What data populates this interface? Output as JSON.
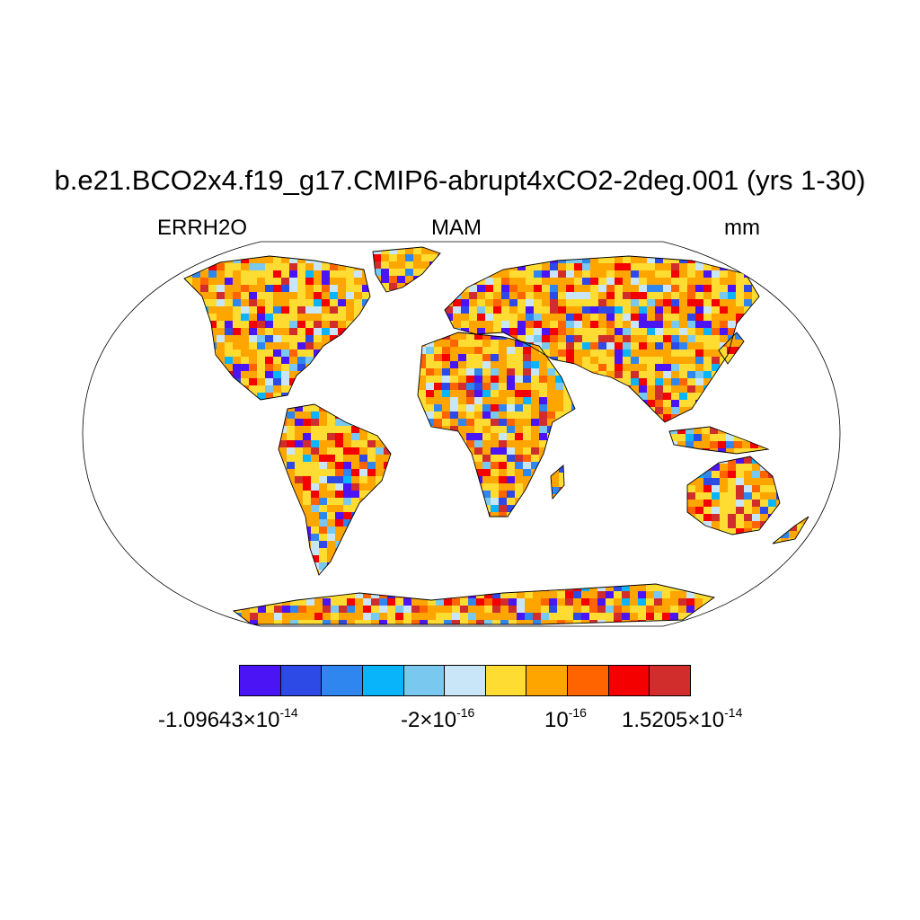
{
  "title": "b.e21.BCO2x4.f19_g17.CMIP6-abrupt4xCO2-2deg.001 (yrs 1-30)",
  "left_label": "ERRH2O",
  "center_label": "MAM",
  "right_label": "mm",
  "colorbar": {
    "colors": [
      "#4a14f5",
      "#2e4ae6",
      "#2e86ee",
      "#0ab4fa",
      "#78c8f0",
      "#c8e6f8",
      "#ffdc32",
      "#ffa500",
      "#ff6400",
      "#f50000",
      "#d22d2d"
    ],
    "labels": [
      {
        "mantissa": "-1.09643",
        "times": "×",
        "base": "10",
        "exp": "-14"
      },
      {
        "mantissa": "-2",
        "times": "×",
        "base": "10",
        "exp": "-16"
      },
      {
        "mantissa": "",
        "times": "",
        "base": "10",
        "exp": "-16"
      },
      {
        "mantissa": "1.5205",
        "times": "×",
        "base": "10",
        "exp": "-14"
      }
    ]
  }
}
